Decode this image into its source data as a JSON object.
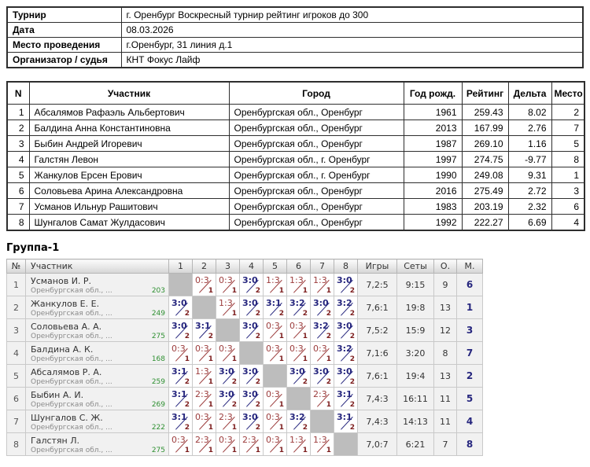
{
  "info": {
    "rows": [
      {
        "label": "Турнир",
        "value": "г. Оренбург Воскресный турнир рейтинг игроков до 300"
      },
      {
        "label": "Дата",
        "value": "08.03.2026"
      },
      {
        "label": "Место проведения",
        "value": "г.Оренбург, 31 линия д.1"
      },
      {
        "label": "Организатор / судья",
        "value": "КНТ Фокус Лайф"
      }
    ]
  },
  "participants": {
    "headers": [
      "N",
      "Участник",
      "Город",
      "Год рожд.",
      "Рейтинг",
      "Дельта",
      "Место"
    ],
    "rows": [
      [
        "1",
        "Абсалямов Рафаэль Альбертович",
        "Оренбургская обл., Оренбург",
        "1961",
        "259.43",
        "8.02",
        "2"
      ],
      [
        "2",
        "Балдина Анна Константиновна",
        "Оренбургская обл., Оренбург",
        "2013",
        "167.99",
        "2.76",
        "7"
      ],
      [
        "3",
        "Быбин Андрей Игоревич",
        "Оренбургская обл., Оренбург",
        "1987",
        "269.10",
        "1.16",
        "5"
      ],
      [
        "4",
        "Галстян Левон",
        "Оренбургская обл., г. Оренбург",
        "1997",
        "274.75",
        "-9.77",
        "8"
      ],
      [
        "5",
        "Жанкулов Ерсен Ерович",
        "Оренбургская обл., г. Оренбург",
        "1990",
        "249.08",
        "9.31",
        "1"
      ],
      [
        "6",
        "Соловьева Арина Александровна",
        "Оренбургская обл., Оренбург",
        "2016",
        "275.49",
        "2.72",
        "3"
      ],
      [
        "7",
        "Усманов Ильнур Рашитович",
        "Оренбургская обл., Оренбург",
        "1983",
        "203.19",
        "2.32",
        "6"
      ],
      [
        "8",
        "Шунгалов Самат Жулдасович",
        "Оренбургская обл., Оренбург",
        "1992",
        "222.27",
        "6.69",
        "4"
      ]
    ]
  },
  "group": {
    "title": "Группа-1",
    "headers": {
      "num": "№",
      "participant": "Участник",
      "cols": [
        "1",
        "2",
        "3",
        "4",
        "5",
        "6",
        "7",
        "8"
      ],
      "games": "Игры",
      "sets": "Сеты",
      "points": "О.",
      "place": "М."
    },
    "rows": [
      {
        "num": "1",
        "name": "Усманов И. Р.",
        "region": "Оренбургская обл., ...",
        "rating": "203",
        "cells": [
          null,
          {
            "score": "0:3",
            "point": "1",
            "win": false
          },
          {
            "score": "0:3",
            "point": "1",
            "win": false
          },
          {
            "score": "3:0",
            "point": "2",
            "win": true
          },
          {
            "score": "1:3",
            "point": "1",
            "win": false
          },
          {
            "score": "1:3",
            "point": "1",
            "win": false
          },
          {
            "score": "1:3",
            "point": "1",
            "win": false
          },
          {
            "score": "3:0",
            "point": "2",
            "win": true
          }
        ],
        "games": "7,2:5",
        "sets": "9:15",
        "points": "9",
        "place": "6"
      },
      {
        "num": "2",
        "name": "Жанкулов Е. Е.",
        "region": "Оренбургская обл., ...",
        "rating": "249",
        "cells": [
          {
            "score": "3:0",
            "point": "2",
            "win": true
          },
          null,
          {
            "score": "1:3",
            "point": "1",
            "win": false
          },
          {
            "score": "3:0",
            "point": "2",
            "win": true
          },
          {
            "score": "3:1",
            "point": "2",
            "win": true
          },
          {
            "score": "3:2",
            "point": "2",
            "win": true
          },
          {
            "score": "3:0",
            "point": "2",
            "win": true
          },
          {
            "score": "3:2",
            "point": "2",
            "win": true
          }
        ],
        "games": "7,6:1",
        "sets": "19:8",
        "points": "13",
        "place": "1"
      },
      {
        "num": "3",
        "name": "Соловьева А. А.",
        "region": "Оренбургская обл., ...",
        "rating": "275",
        "cells": [
          {
            "score": "3:0",
            "point": "2",
            "win": true
          },
          {
            "score": "3:1",
            "point": "2",
            "win": true
          },
          null,
          {
            "score": "3:0",
            "point": "2",
            "win": true
          },
          {
            "score": "0:3",
            "point": "1",
            "win": false
          },
          {
            "score": "0:3",
            "point": "1",
            "win": false
          },
          {
            "score": "3:2",
            "point": "2",
            "win": true
          },
          {
            "score": "3:0",
            "point": "2",
            "win": true
          }
        ],
        "games": "7,5:2",
        "sets": "15:9",
        "points": "12",
        "place": "3"
      },
      {
        "num": "4",
        "name": "Балдина А. К.",
        "region": "Оренбургская обл., ...",
        "rating": "168",
        "cells": [
          {
            "score": "0:3",
            "point": "1",
            "win": false
          },
          {
            "score": "0:3",
            "point": "1",
            "win": false
          },
          {
            "score": "0:3",
            "point": "1",
            "win": false
          },
          null,
          {
            "score": "0:3",
            "point": "1",
            "win": false
          },
          {
            "score": "0:3",
            "point": "1",
            "win": false
          },
          {
            "score": "0:3",
            "point": "1",
            "win": false
          },
          {
            "score": "3:2",
            "point": "2",
            "win": true
          }
        ],
        "games": "7,1:6",
        "sets": "3:20",
        "points": "8",
        "place": "7"
      },
      {
        "num": "5",
        "name": "Абсалямов Р. А.",
        "region": "Оренбургская обл., ...",
        "rating": "259",
        "cells": [
          {
            "score": "3:1",
            "point": "2",
            "win": true
          },
          {
            "score": "1:3",
            "point": "1",
            "win": false
          },
          {
            "score": "3:0",
            "point": "2",
            "win": true
          },
          {
            "score": "3:0",
            "point": "2",
            "win": true
          },
          null,
          {
            "score": "3:0",
            "point": "2",
            "win": true
          },
          {
            "score": "3:0",
            "point": "2",
            "win": true
          },
          {
            "score": "3:0",
            "point": "2",
            "win": true
          }
        ],
        "games": "7,6:1",
        "sets": "19:4",
        "points": "13",
        "place": "2"
      },
      {
        "num": "6",
        "name": "Быбин А. И.",
        "region": "Оренбургская обл., ...",
        "rating": "269",
        "cells": [
          {
            "score": "3:1",
            "point": "2",
            "win": true
          },
          {
            "score": "2:3",
            "point": "1",
            "win": false
          },
          {
            "score": "3:0",
            "point": "2",
            "win": true
          },
          {
            "score": "3:0",
            "point": "2",
            "win": true
          },
          {
            "score": "0:3",
            "point": "1",
            "win": false
          },
          null,
          {
            "score": "2:3",
            "point": "1",
            "win": false
          },
          {
            "score": "3:1",
            "point": "2",
            "win": true
          }
        ],
        "games": "7,4:3",
        "sets": "16:11",
        "points": "11",
        "place": "5"
      },
      {
        "num": "7",
        "name": "Шунгалов С. Ж.",
        "region": "Оренбургская обл., ...",
        "rating": "222",
        "cells": [
          {
            "score": "3:1",
            "point": "2",
            "win": true
          },
          {
            "score": "0:3",
            "point": "1",
            "win": false
          },
          {
            "score": "2:3",
            "point": "1",
            "win": false
          },
          {
            "score": "3:0",
            "point": "2",
            "win": true
          },
          {
            "score": "0:3",
            "point": "1",
            "win": false
          },
          {
            "score": "3:2",
            "point": "2",
            "win": true
          },
          null,
          {
            "score": "3:1",
            "point": "2",
            "win": true
          }
        ],
        "games": "7,4:3",
        "sets": "14:13",
        "points": "11",
        "place": "4"
      },
      {
        "num": "8",
        "name": "Галстян Л.",
        "region": "Оренбургская обл., ...",
        "rating": "275",
        "cells": [
          {
            "score": "0:3",
            "point": "1",
            "win": false
          },
          {
            "score": "2:3",
            "point": "1",
            "win": false
          },
          {
            "score": "0:3",
            "point": "1",
            "win": false
          },
          {
            "score": "2:3",
            "point": "1",
            "win": false
          },
          {
            "score": "0:3",
            "point": "1",
            "win": false
          },
          {
            "score": "1:3",
            "point": "1",
            "win": false
          },
          {
            "score": "1:3",
            "point": "1",
            "win": false
          },
          null
        ],
        "games": "7,0:7",
        "sets": "6:21",
        "points": "7",
        "place": "8"
      }
    ]
  },
  "colors": {
    "win_score": "#26267e",
    "loss_score": "#9c3c3c",
    "match_point": "#7e1f1f",
    "rating_green": "#2f9032",
    "place": "#26267e",
    "self_cell": "#bdbdbd"
  }
}
